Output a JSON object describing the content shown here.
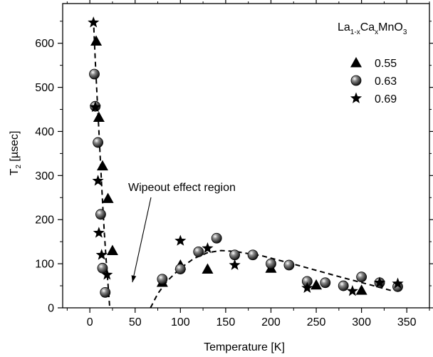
{
  "chart_data": {
    "type": "scatter",
    "title": "",
    "xlabel": "Temperature [K]",
    "ylabel_main": "T",
    "ylabel_sub": "2",
    "ylabel_rest": " [µsec]",
    "xlim": [
      -30,
      375
    ],
    "ylim": [
      0,
      690
    ],
    "xticks": [
      0,
      50,
      100,
      150,
      200,
      250,
      300,
      350
    ],
    "yticks": [
      0,
      100,
      200,
      300,
      400,
      500,
      600
    ],
    "grid": false,
    "legend_position": "top-right",
    "legend_title": {
      "a": "La",
      "b": "1-x",
      "c": "Ca",
      "d": "x",
      "e": "MnO",
      "f": "3"
    },
    "annotation": {
      "text": "Wipeout effect region",
      "arrow_to": [
        47,
        58
      ]
    },
    "series": [
      {
        "name": "0.55",
        "marker": "triangle",
        "points": [
          [
            7,
            605
          ],
          [
            10,
            432
          ],
          [
            14,
            322
          ],
          [
            20,
            248
          ],
          [
            25,
            130
          ],
          [
            80,
            58
          ],
          [
            100,
            97
          ],
          [
            130,
            88
          ],
          [
            200,
            90
          ],
          [
            250,
            52
          ],
          [
            300,
            40
          ]
        ]
      },
      {
        "name": "0.63",
        "marker": "sphere",
        "points": [
          [
            5,
            530
          ],
          [
            6,
            457
          ],
          [
            9,
            375
          ],
          [
            12,
            212
          ],
          [
            14,
            90
          ],
          [
            17,
            35
          ],
          [
            80,
            65
          ],
          [
            100,
            88
          ],
          [
            120,
            127
          ],
          [
            140,
            158
          ],
          [
            160,
            120
          ],
          [
            180,
            120
          ],
          [
            200,
            100
          ],
          [
            220,
            97
          ],
          [
            240,
            60
          ],
          [
            260,
            57
          ],
          [
            280,
            50
          ],
          [
            300,
            70
          ],
          [
            320,
            57
          ],
          [
            340,
            48
          ]
        ]
      },
      {
        "name": "0.69",
        "marker": "star",
        "points": [
          [
            4,
            647
          ],
          [
            6,
            455
          ],
          [
            9,
            288
          ],
          [
            10,
            170
          ],
          [
            13,
            120
          ],
          [
            19,
            75
          ],
          [
            100,
            152
          ],
          [
            130,
            135
          ],
          [
            160,
            97
          ],
          [
            240,
            45
          ],
          [
            290,
            38
          ],
          [
            320,
            57
          ],
          [
            340,
            55
          ]
        ]
      }
    ],
    "fit_curves": [
      [
        [
          4,
          655
        ],
        [
          6,
          560
        ],
        [
          8,
          480
        ],
        [
          10,
          400
        ],
        [
          12,
          320
        ],
        [
          14,
          240
        ],
        [
          16,
          170
        ],
        [
          18,
          110
        ],
        [
          20,
          55
        ],
        [
          22,
          0
        ]
      ],
      [
        [
          67,
          0
        ],
        [
          75,
          32
        ],
        [
          85,
          60
        ],
        [
          100,
          90
        ],
        [
          115,
          112
        ],
        [
          130,
          125
        ],
        [
          145,
          130
        ],
        [
          160,
          128
        ],
        [
          190,
          118
        ],
        [
          220,
          102
        ],
        [
          250,
          85
        ],
        [
          280,
          68
        ],
        [
          310,
          52
        ],
        [
          335,
          38
        ]
      ]
    ]
  }
}
